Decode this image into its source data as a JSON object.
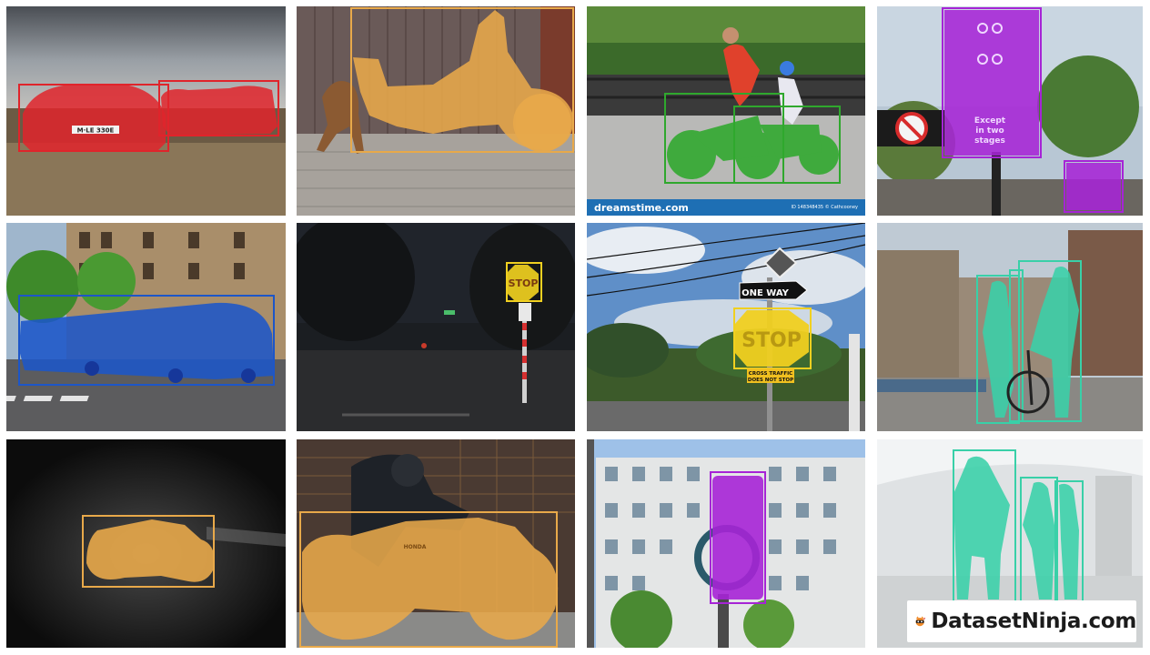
{
  "tiles": [
    {
      "id": "cars",
      "label": "car"
    },
    {
      "id": "dog-motorcycle",
      "label": "motorcycle"
    },
    {
      "id": "bicycles",
      "label": "bicycle"
    },
    {
      "id": "traffic-light-street",
      "label": "traffic light"
    },
    {
      "id": "bus",
      "label": "bus"
    },
    {
      "id": "night-stop",
      "label": "stop sign"
    },
    {
      "id": "stop-one-way",
      "label": "stop sign"
    },
    {
      "id": "people-bicycle",
      "label": "person"
    },
    {
      "id": "dark-motorcycle",
      "label": "motorcycle"
    },
    {
      "id": "rider-motorcycle",
      "label": "motorcycle"
    },
    {
      "id": "building-traffic-light",
      "label": "traffic light"
    },
    {
      "id": "business-people",
      "label": "person"
    }
  ],
  "text": {
    "license_plate": "M·LE 330E",
    "watermark_brand": "dreamstime.com",
    "watermark_id": "ID 148348435 © Cathcooney",
    "stop_sign": "STOP",
    "one_way": "ONE WAY",
    "cross_traffic_line1": "CROSS TRAFFIC",
    "cross_traffic_line2": "DOES NOT STOP",
    "except_line1": "Except",
    "except_line2": "in two",
    "except_line3": "stages",
    "moto_brand": "HONDA",
    "brand": "DatasetNinja.com"
  },
  "colors": {
    "car": "#e0242b",
    "motorcycle": "#e8a94a",
    "bicycle": "#2fa82d",
    "traffic_light": "#a624d6",
    "bus": "#1d56c8",
    "stop_sign": "#f0d020",
    "person": "#39d0a8"
  }
}
